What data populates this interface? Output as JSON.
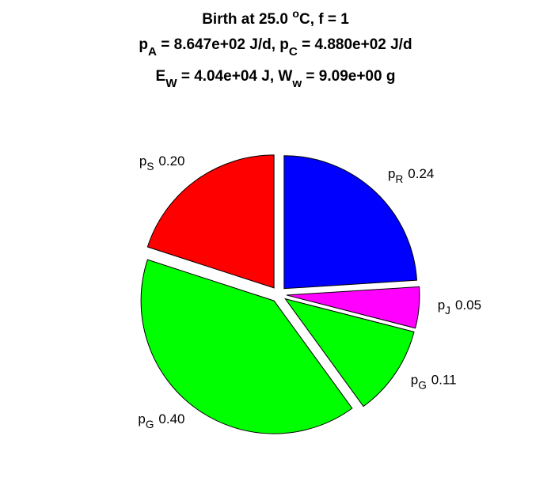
{
  "chart_data": {
    "type": "pie",
    "title": [
      [
        {
          "text": "Birth at 25.0 "
        },
        {
          "text": "o",
          "sup": true
        },
        {
          "text": "C, f = 1"
        }
      ],
      [
        {
          "text": "p"
        },
        {
          "text": "A",
          "sub": true
        },
        {
          "text": " = 8.647e+02 J/d, p"
        },
        {
          "text": "C",
          "sub": true
        },
        {
          "text": " = 4.880e+02 J/d"
        }
      ],
      [
        {
          "text": "E"
        },
        {
          "text": "W",
          "sub": true
        },
        {
          "text": " = 4.04e+04 J, W"
        },
        {
          "text": "w",
          "sub": true
        },
        {
          "text": " = 9.09e+00 g"
        }
      ]
    ],
    "categories": [
      [
        {
          "text": "p"
        },
        {
          "text": "R",
          "sub": true
        }
      ],
      [
        {
          "text": "p"
        },
        {
          "text": "J",
          "sub": true
        }
      ],
      [
        {
          "text": "p"
        },
        {
          "text": "G",
          "sub": true
        }
      ],
      [
        {
          "text": "p"
        },
        {
          "text": "G",
          "sub": true
        }
      ],
      [
        {
          "text": "p"
        },
        {
          "text": "S",
          "sub": true
        }
      ]
    ],
    "values": [
      0.24,
      0.05,
      0.11,
      0.4,
      0.2
    ],
    "value_labels": [
      "0.24",
      "0.05",
      "0.11",
      "0.40",
      "0.20"
    ],
    "colors": [
      "#0000ff",
      "#ff00ff",
      "#00ff00",
      "#00ff00",
      "#ff0000"
    ],
    "exploded": true
  }
}
